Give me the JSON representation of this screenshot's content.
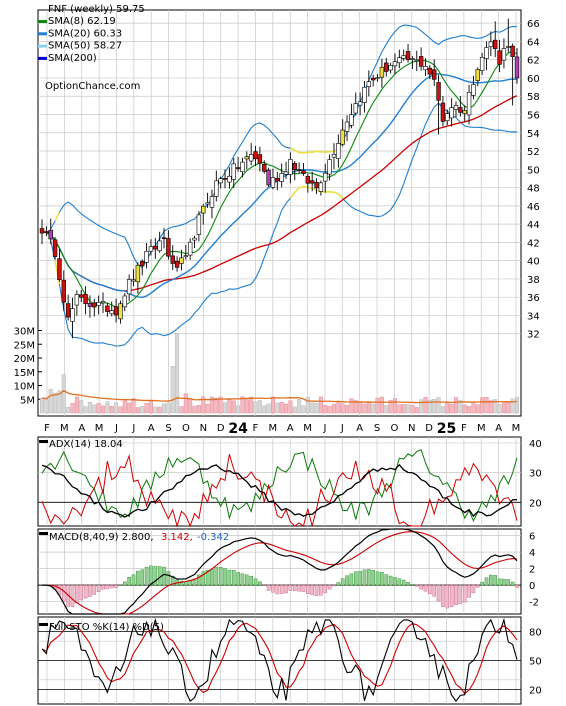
{
  "chart_data": [
    {
      "type": "candlestick",
      "panel": "price",
      "title": "FNF (weekly) 59.75",
      "site": "OptionChance.com",
      "legend": [
        {
          "label": "SMA(8) 62.19",
          "color": "#0a8a0a"
        },
        {
          "label": "SMA(20) 60.33",
          "color": "#1f7fd0"
        },
        {
          "label": "SMA(50) 58.27",
          "color": "#8fd0f0"
        },
        {
          "label": "SMA(200)",
          "color": "#0000cc"
        }
      ],
      "y_ticks": [
        "66",
        "64",
        "62",
        "60",
        "58",
        "56",
        "54",
        "52",
        "50",
        "48",
        "46",
        "44",
        "42",
        "40",
        "38",
        "36",
        "34",
        "32"
      ],
      "ylim": [
        30,
        67
      ],
      "x_ticks": [
        "F",
        "M",
        "A",
        "M",
        "J",
        "J",
        "A",
        "S",
        "O",
        "N",
        "D",
        "24",
        "F",
        "M",
        "A",
        "M",
        "J",
        "J",
        "A",
        "S",
        "O",
        "N",
        "D",
        "25",
        "F",
        "M",
        "A",
        "M"
      ],
      "close_anchors": [
        [
          0,
          43.5
        ],
        [
          3,
          41
        ],
        [
          6,
          33.5
        ],
        [
          8,
          35.8
        ],
        [
          12,
          35.2
        ],
        [
          17,
          34.6
        ],
        [
          20,
          37.5
        ],
        [
          24,
          40.5
        ],
        [
          28,
          42.5
        ],
        [
          30,
          39.2
        ],
        [
          33,
          40
        ],
        [
          36,
          44.5
        ],
        [
          40,
          48.5
        ],
        [
          44,
          50
        ],
        [
          48,
          51.5
        ],
        [
          50,
          50.8
        ],
        [
          52,
          48.5
        ],
        [
          55,
          49.5
        ],
        [
          57,
          51
        ],
        [
          60,
          49
        ],
        [
          63,
          48
        ],
        [
          66,
          51
        ],
        [
          70,
          55.5
        ],
        [
          75,
          59.5
        ],
        [
          80,
          61.5
        ],
        [
          84,
          62
        ],
        [
          88,
          61.5
        ],
        [
          90,
          59.5
        ],
        [
          92,
          55.5
        ],
        [
          94,
          57
        ],
        [
          97,
          56.5
        ],
        [
          100,
          61.5
        ],
        [
          103,
          64
        ],
        [
          105,
          62
        ],
        [
          107,
          64
        ],
        [
          109,
          60
        ]
      ],
      "volume": {
        "y_ticks": [
          "30M",
          "25M",
          "20M",
          "15M",
          "10M",
          "5M"
        ],
        "max": 32
      }
    },
    {
      "type": "line",
      "panel": "ADX",
      "title": "ADX(14) 18.04",
      "y_ticks": [
        "40",
        "30",
        "20"
      ],
      "ylim": [
        12,
        42
      ],
      "series_colors": {
        "adx": "#000000",
        "plus_di": "#0a7a0a",
        "minus_di": "#cc0000"
      }
    },
    {
      "type": "line",
      "panel": "MACD",
      "title": "MACD(8,40,9) 2.800,",
      "values_text": [
        {
          "text": "3.142,",
          "color": "#cc0000"
        },
        {
          "text": "-0.342",
          "color": "#1f5fc0"
        }
      ],
      "y_ticks": [
        "6",
        "4",
        "2",
        "0",
        "-2"
      ],
      "ylim": [
        -3.5,
        6.8
      ]
    },
    {
      "type": "line",
      "panel": "STO",
      "title": "Full STO %K(14) %D(5)",
      "y_ticks": [
        "80",
        "50",
        "20"
      ],
      "ylim": [
        5,
        95
      ]
    }
  ]
}
